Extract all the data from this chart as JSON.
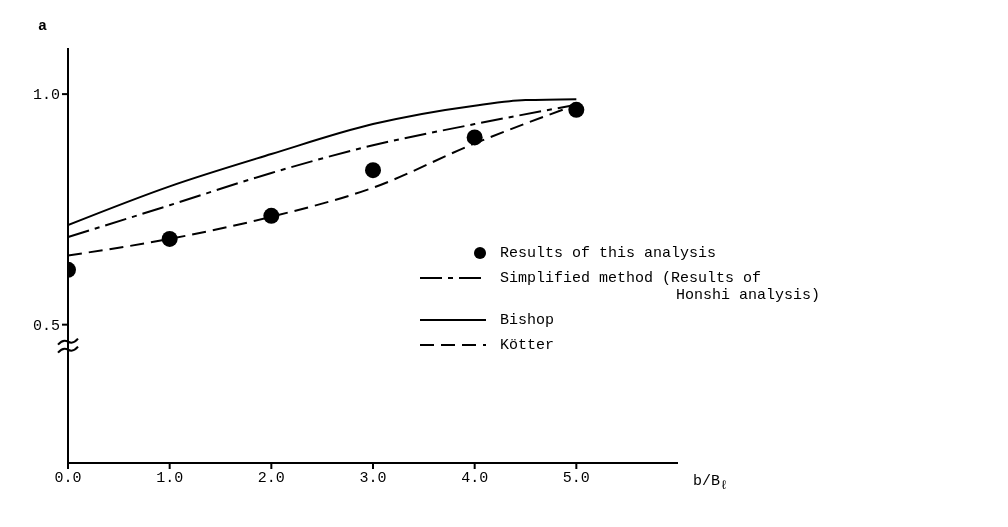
{
  "chart_data": {
    "type": "line",
    "xlabel": "b/B$_{ℓ}$",
    "ylabel": "a",
    "xlim": [
      0,
      6
    ],
    "xticks": [
      {
        "value": 0,
        "label": "0.0"
      },
      {
        "value": 1,
        "label": "1.0"
      },
      {
        "value": 2,
        "label": "2.0"
      },
      {
        "value": 3,
        "label": "3.0"
      },
      {
        "value": 4,
        "label": "4.0"
      },
      {
        "value": 5,
        "label": "5.0"
      }
    ],
    "ylim": [
      0.2,
      1.1
    ],
    "yticks": [
      {
        "value": 0.5,
        "label": "0.5"
      },
      {
        "value": 1,
        "label": "1.0"
      }
    ],
    "grid": false,
    "legend": "right",
    "series": [
      {
        "name": "Results of this analysis",
        "type": "scatter",
        "color": "#000000",
        "marker": "circle",
        "x": [
          0,
          1,
          2,
          3,
          4,
          5
        ],
        "values": [
          0.619,
          0.686,
          0.736,
          0.835,
          0.906,
          0.966
        ]
      },
      {
        "name": "Simplified method (Results of Honshi analysis)",
        "color": "#000000",
        "line_style": "dashdot",
        "x": [
          0,
          1,
          2,
          3,
          4,
          5
        ],
        "values": [
          0.69,
          0.759,
          0.829,
          0.889,
          0.935,
          0.977
        ]
      },
      {
        "name": "Bishop",
        "color": "#000000",
        "line_style": "solid",
        "x": [
          0,
          1,
          2,
          3,
          4,
          4.5,
          5
        ],
        "values": [
          0.716,
          0.8,
          0.87,
          0.935,
          0.975,
          0.987,
          0.989
        ]
      },
      {
        "name": "Kötter",
        "color": "#000000",
        "line_style": "dashed",
        "x": [
          0,
          1,
          2,
          3,
          4,
          5
        ],
        "values": [
          0.65,
          0.686,
          0.734,
          0.797,
          0.893,
          0.977
        ]
      }
    ]
  }
}
